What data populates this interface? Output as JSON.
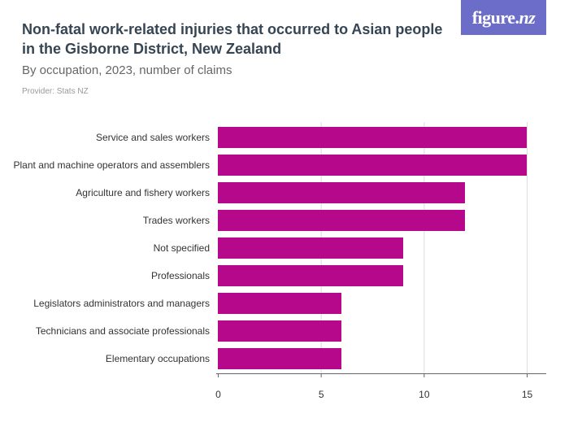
{
  "header": {
    "title": "Non-fatal work-related injuries that occurred to Asian people in the Gisborne District, New Zealand",
    "subtitle": "By occupation, 2023, number of claims",
    "provider": "Provider: Stats NZ"
  },
  "logo": {
    "text_main": "figure.",
    "text_italic": "nz"
  },
  "colors": {
    "bar": "#b5088b",
    "grid": "#dddddd",
    "axis": "#666666",
    "label": "#333333",
    "logo_bg": "#6c6cc9",
    "title": "#364554"
  },
  "chart_data": {
    "type": "bar",
    "orientation": "horizontal",
    "categories": [
      "Service and sales workers",
      "Plant and machine operators and assemblers",
      "Agriculture and fishery workers",
      "Trades workers",
      "Not specified",
      "Professionals",
      "Legislators administrators and managers",
      "Technicians and associate professionals",
      "Elementary occupations"
    ],
    "values": [
      15,
      15,
      12,
      12,
      9,
      9,
      6,
      6,
      6
    ],
    "xlim": [
      0,
      15
    ],
    "xticks": [
      0,
      5,
      10,
      15
    ],
    "grid": true,
    "title": "",
    "xlabel": "",
    "ylabel": ""
  }
}
